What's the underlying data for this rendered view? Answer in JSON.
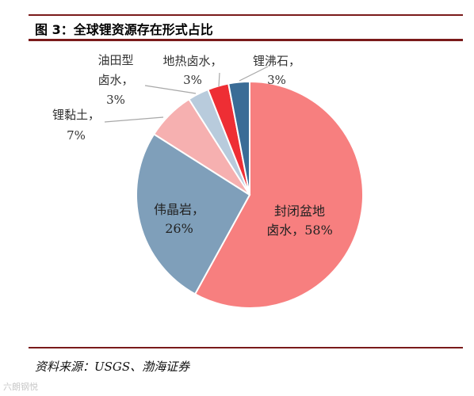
{
  "figure": {
    "title": "图 3：全球锂资源存在形式占比",
    "source": "资料来源：USGS、渤海证券",
    "watermark": "六朗钢悦"
  },
  "chart_data": {
    "type": "pie",
    "title": "图 3：全球锂资源存在形式占比",
    "slices": [
      {
        "label_lines": [
          "封闭盆地",
          "卤水，58%"
        ],
        "value": 58,
        "color": "#f77f7f"
      },
      {
        "label_lines": [
          "伟晶岩，",
          "26%"
        ],
        "value": 26,
        "color": "#7f9fba"
      },
      {
        "label_lines": [
          "锂黏土，",
          "7%"
        ],
        "value": 7,
        "color": "#f6b0b0"
      },
      {
        "label_lines": [
          "油田型",
          "卤水，",
          "3%"
        ],
        "value": 3,
        "color": "#b8cbdc"
      },
      {
        "label_lines": [
          "地热卤水，",
          "3%"
        ],
        "value": 3,
        "color": "#ee2e34"
      },
      {
        "label_lines": [
          "锂沸石，",
          "3%"
        ],
        "value": 3,
        "color": "#3a6c96"
      }
    ]
  }
}
